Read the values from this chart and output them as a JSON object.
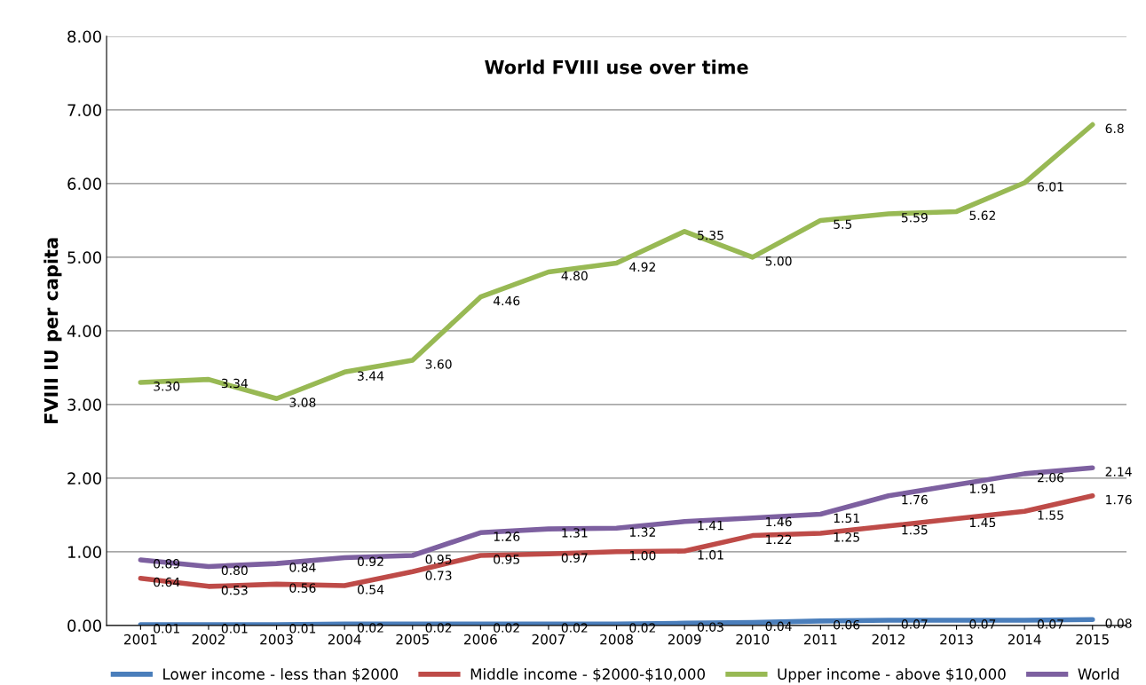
{
  "chart_data": {
    "type": "line",
    "title": "World FVIII use over time",
    "ylabel": "FVIII IU per capita",
    "categories": [
      "2001",
      "2002",
      "2003",
      "2004",
      "2005",
      "2006",
      "2007",
      "2008",
      "2009",
      "2010",
      "2011",
      "2012",
      "2013",
      "2014",
      "2015"
    ],
    "series": [
      {
        "name": "Lower income - less than $2000",
        "color": "#4a7ebb",
        "values": [
          0.01,
          0.01,
          0.01,
          0.02,
          0.02,
          0.02,
          0.02,
          0.02,
          0.03,
          0.04,
          0.06,
          0.07,
          0.07,
          0.07,
          0.08
        ],
        "value_labels": [
          "0.01",
          "0.01",
          "0.01",
          "0.02",
          "0.02",
          "0.02",
          "0.02",
          "0.02",
          "0.03",
          "0.04",
          "0.06",
          "0.07",
          "0.07",
          "0.07",
          "0.08"
        ]
      },
      {
        "name": "Middle income - $2000-$10,000",
        "color": "#be4b48",
        "values": [
          0.64,
          0.53,
          0.56,
          0.54,
          0.73,
          0.95,
          0.97,
          1.0,
          1.01,
          1.22,
          1.25,
          1.35,
          1.45,
          1.55,
          1.76
        ],
        "value_labels": [
          "0.64",
          "0.53",
          "0.56",
          "0.54",
          "0.73",
          "0.95",
          "0.97",
          "1.00",
          "1.01",
          "1.22",
          "1.25",
          "1.35",
          "1.45",
          "1.55",
          "1.76"
        ]
      },
      {
        "name": "Upper income - above $10,000",
        "color": "#98b954",
        "values": [
          3.3,
          3.34,
          3.08,
          3.44,
          3.6,
          4.46,
          4.8,
          4.92,
          5.35,
          5.0,
          5.5,
          5.59,
          5.62,
          6.01,
          6.8
        ],
        "value_labels": [
          "3.30",
          "3.34",
          "3.08",
          "3.44",
          "3.60",
          "4.46",
          "4.80",
          "4.92",
          "5.35",
          "5.00",
          "5.5",
          "5.59",
          "5.62",
          "6.01",
          "6.8"
        ]
      },
      {
        "name": "World",
        "color": "#7d60a0",
        "values": [
          0.89,
          0.8,
          0.84,
          0.92,
          0.95,
          1.26,
          1.31,
          1.32,
          1.41,
          1.46,
          1.51,
          1.76,
          1.91,
          2.06,
          2.14
        ],
        "value_labels": [
          "0.89",
          "0.80",
          "0.84",
          "0.92",
          "0.95",
          "1.26",
          "1.31",
          "1.32",
          "1.41",
          "1.46",
          "1.51",
          "1.76",
          "1.91",
          "2.06",
          "2.14"
        ]
      }
    ],
    "ylim": [
      0,
      8
    ],
    "yticks": [
      {
        "value": 0,
        "label": "0.00"
      },
      {
        "value": 1,
        "label": "1.00"
      },
      {
        "value": 2,
        "label": "2.00"
      },
      {
        "value": 3,
        "label": "3.00"
      },
      {
        "value": 4,
        "label": "4.00"
      },
      {
        "value": 5,
        "label": "5.00"
      },
      {
        "value": 6,
        "label": "6.00"
      },
      {
        "value": 7,
        "label": "7.00"
      },
      {
        "value": 8,
        "label": "8.00"
      }
    ],
    "grid": "y",
    "legend": "bottom",
    "marker": "none",
    "line_style": "solid"
  }
}
